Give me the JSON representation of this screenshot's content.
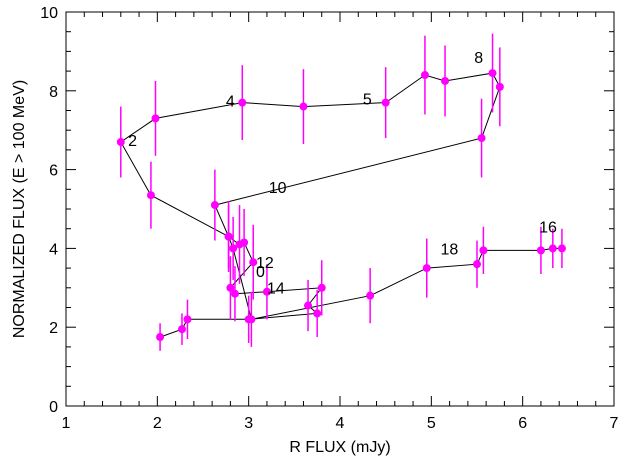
{
  "chart_data": {
    "type": "line",
    "title": "",
    "xlabel": "R FLUX (mJy)",
    "ylabel": "NORMALIZED  FLUX (E > 100 MeV)",
    "xlim": [
      1,
      7
    ],
    "ylim": [
      0,
      10
    ],
    "xticks": [
      "1",
      "2",
      "3",
      "4",
      "5",
      "6",
      "7"
    ],
    "yticks": [
      "0",
      "2",
      "4",
      "6",
      "8",
      "10"
    ],
    "grid": false,
    "legend": "none",
    "colors": {
      "marker": "#ff00ff",
      "line": "#000000",
      "axis": "#000000"
    },
    "series": [
      {
        "x": [
          2.03,
          2.27,
          2.33,
          3.0,
          3.75,
          3.65,
          3.8,
          3.2,
          2.85,
          2.8,
          3.05,
          2.95,
          2.9,
          2.78,
          2.63,
          5.55,
          5.75,
          5.67,
          5.15,
          4.93,
          4.5,
          3.6,
          2.93,
          1.98,
          1.6,
          1.93,
          2.78,
          2.83,
          3.03,
          4.33,
          4.95,
          5.5,
          5.57,
          6.2,
          6.33,
          6.43
        ],
        "y": [
          1.75,
          1.95,
          2.2,
          2.2,
          2.35,
          2.55,
          3.0,
          2.9,
          2.85,
          3.0,
          3.65,
          4.15,
          4.1,
          4.3,
          5.1,
          6.8,
          8.1,
          8.45,
          8.25,
          8.4,
          7.7,
          7.6,
          7.7,
          7.3,
          6.7,
          5.35,
          4.3,
          4.0,
          2.2,
          2.8,
          3.5,
          3.6,
          3.95,
          3.95,
          4.0,
          4.0
        ],
        "err": [
          0.35,
          0.4,
          0.5,
          0.6,
          0.6,
          0.65,
          0.7,
          0.7,
          0.7,
          0.8,
          0.95,
          0.85,
          1.0,
          0.9,
          0.9,
          1.0,
          1.0,
          1.0,
          0.9,
          1.0,
          0.9,
          0.95,
          0.95,
          0.95,
          0.9,
          0.85,
          0.8,
          0.8,
          0.7,
          0.7,
          0.75,
          0.6,
          0.6,
          0.6,
          0.5,
          0.5
        ]
      }
    ],
    "annotations": [
      {
        "text": "0",
        "x": 3.08,
        "y": 3.28
      },
      {
        "text": "2",
        "x": 1.68,
        "y": 6.6
      },
      {
        "text": "4",
        "x": 2.75,
        "y": 7.6
      },
      {
        "text": "5",
        "x": 4.25,
        "y": 7.65
      },
      {
        "text": "8",
        "x": 5.47,
        "y": 8.7
      },
      {
        "text": "10",
        "x": 3.22,
        "y": 5.4
      },
      {
        "text": "12",
        "x": 3.08,
        "y": 3.5
      },
      {
        "text": "14",
        "x": 3.2,
        "y": 2.85
      },
      {
        "text": "16",
        "x": 6.18,
        "y": 4.4
      },
      {
        "text": "18",
        "x": 5.1,
        "y": 3.85
      }
    ]
  }
}
